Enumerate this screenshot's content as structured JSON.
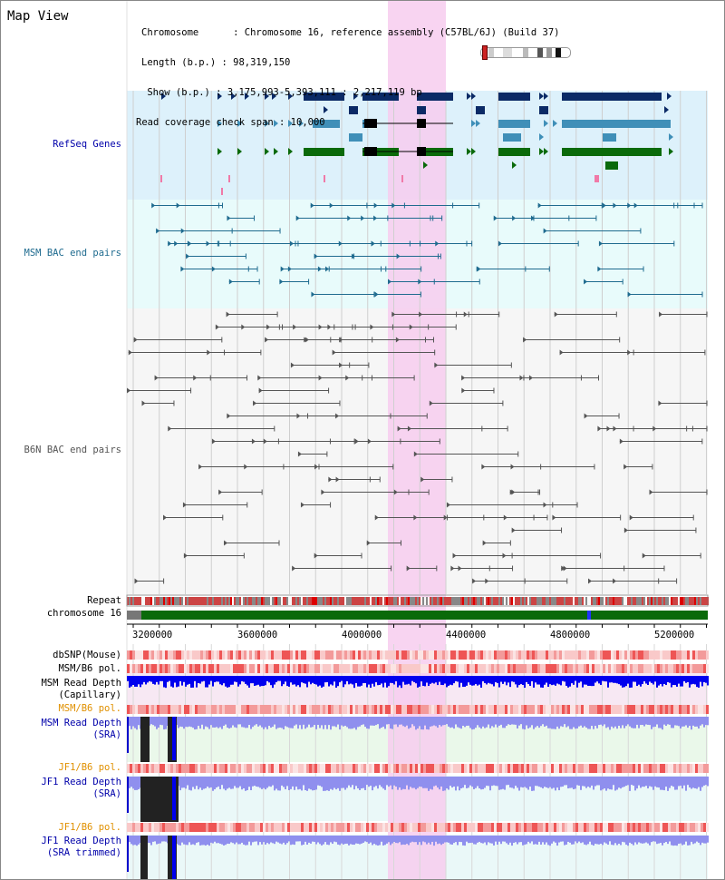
{
  "title": "Map View",
  "info": {
    "line1": "Chromosome      : Chromosome 16, reference assembly (C57BL/6J) (Build 37)",
    "line2": "Length (b.p.) : 98,319,150",
    "line3": " Show (b.p.) : 3,175,993-5,393,111 : 2,217,119 bp",
    "line4": "Read coverage check span : 10,000"
  },
  "tracks": {
    "refseq": "RefSeq Genes",
    "msm_bac": "MSM BAC end pairs",
    "b6n_bac": "B6N BAC end pairs",
    "repeat": "Repeat",
    "chromosome": "chromosome 16",
    "dbsnp": "dbSNP(Mouse)",
    "msm_b6_pol_1": "MSM/B6 pol.",
    "msm_depth_cap": "MSM Read Depth\n(Capillary)",
    "msm_b6_pol_2": "MSM/B6 pol.",
    "msm_depth_sra": "MSM Read Depth\n(SRA)",
    "jf1_b6_pol_1": "JF1/B6 pol.",
    "jf1_depth_sra": "JF1 Read Depth\n(SRA)",
    "jf1_b6_pol_2": "JF1/B6 pol.",
    "jf1_depth_trim": "JF1 Read Depth\n(SRA trimmed)"
  },
  "axis": {
    "ticks": [
      "3200000",
      "3600000",
      "4000000",
      "4400000",
      "4800000",
      "5200000"
    ]
  },
  "colors": {
    "refseq_bg": "#ddf1fb",
    "msm_bac_bg": "#e8fbfb",
    "highlight": "#f7ccee",
    "gene_dark": "#0b2a66",
    "gene_mid": "#3f8fb8",
    "gene_green": "#0a6a0a",
    "bac_msm": "#1f6b8f",
    "bac_b6n": "#555555",
    "depth_blue": "#0000ee",
    "depth_light": "#8f8fee",
    "pol_red": "#ee3030",
    "label_blue": "#0000aa",
    "label_teal": "#1f6b8f",
    "label_orange": "#e09000"
  }
}
